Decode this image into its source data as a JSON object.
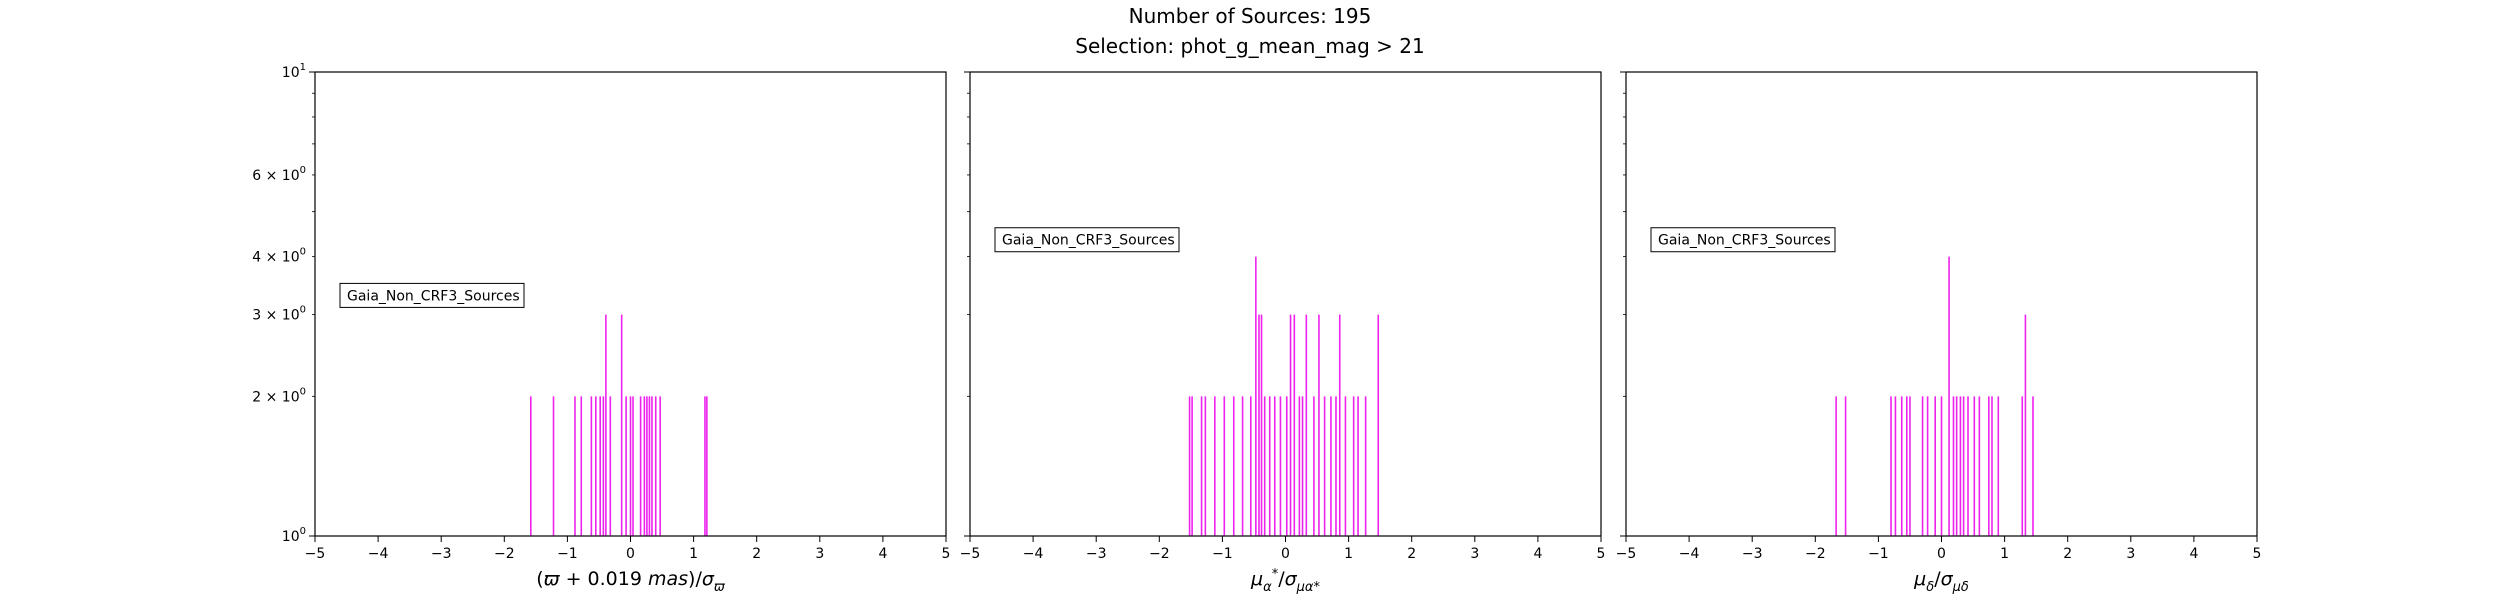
{
  "figure": {
    "title_lines": [
      "Number of Sources: 195",
      "Selection: phot_g_mean_mag > 21"
    ]
  },
  "colors": {
    "histogram": "#ee22ee",
    "axes": "#000000",
    "background": "#ffffff"
  },
  "chart_data": [
    {
      "type": "histogram",
      "yscale": "log",
      "xlim": [
        -5,
        5
      ],
      "ylim": [
        1,
        10
      ],
      "xticks": [
        -5,
        -4,
        -3,
        -2,
        -1,
        0,
        1,
        2,
        3,
        4,
        5
      ],
      "xticklabels": [
        "−5",
        "−4",
        "−3",
        "−2",
        "−1",
        "0",
        "1",
        "2",
        "3",
        "4",
        "5"
      ],
      "yticks": [
        {
          "value": 1,
          "base": "10",
          "exp": "0"
        },
        {
          "value": 2,
          "coef": "2",
          "base": "10",
          "exp": "0"
        },
        {
          "value": 3,
          "coef": "3",
          "base": "10",
          "exp": "0"
        },
        {
          "value": 4,
          "coef": "4",
          "base": "10",
          "exp": "0"
        },
        {
          "value": 6,
          "coef": "6",
          "base": "10",
          "exp": "0"
        },
        {
          "value": 10,
          "base": "10",
          "exp": "1"
        }
      ],
      "xlabel": "(ϖ + 0.019 mas)/σϖ",
      "xlabel_parts": [
        {
          "text": "("
        },
        {
          "text": "ϖ",
          "italic": true
        },
        {
          "text": " + 0.019 "
        },
        {
          "text": "mas",
          "italic": true
        },
        {
          "text": ")/"
        },
        {
          "text": "σ",
          "italic": true
        },
        {
          "text": "ϖ",
          "italic": true,
          "sub": true
        }
      ],
      "legend": "Gaia_Non_CRF3_Sources",
      "legend_position": "center-left",
      "spikes": [
        {
          "x": -1.58,
          "count": 2
        },
        {
          "x": -1.22,
          "count": 2
        },
        {
          "x": -0.88,
          "count": 2
        },
        {
          "x": -0.78,
          "count": 2
        },
        {
          "x": -0.62,
          "count": 2
        },
        {
          "x": -0.55,
          "count": 2
        },
        {
          "x": -0.48,
          "count": 2
        },
        {
          "x": -0.43,
          "count": 2
        },
        {
          "x": -0.39,
          "count": 3
        },
        {
          "x": -0.32,
          "count": 2
        },
        {
          "x": -0.14,
          "count": 3
        },
        {
          "x": -0.07,
          "count": 2
        },
        {
          "x": 0.0,
          "count": 2
        },
        {
          "x": 0.04,
          "count": 2
        },
        {
          "x": 0.16,
          "count": 2
        },
        {
          "x": 0.22,
          "count": 2
        },
        {
          "x": 0.26,
          "count": 2
        },
        {
          "x": 0.3,
          "count": 2
        },
        {
          "x": 0.34,
          "count": 2
        },
        {
          "x": 0.4,
          "count": 2
        },
        {
          "x": 0.47,
          "count": 2
        },
        {
          "x": 1.18,
          "count": 2
        },
        {
          "x": 1.21,
          "count": 2
        }
      ]
    },
    {
      "type": "histogram",
      "yscale": "log",
      "xlim": [
        -5,
        5
      ],
      "ylim": [
        1,
        10
      ],
      "xticks": [
        -5,
        -4,
        -3,
        -2,
        -1,
        0,
        1,
        2,
        3,
        4,
        5
      ],
      "xticklabels": [
        "−5",
        "−4",
        "−3",
        "−2",
        "−1",
        "0",
        "1",
        "2",
        "3",
        "4",
        "5"
      ],
      "xlabel": "μα*/σμα*",
      "xlabel_parts": [
        {
          "text": "μ",
          "italic": true
        },
        {
          "text": "α",
          "italic": true,
          "sub": true
        },
        {
          "text": "*",
          "sup": true
        },
        {
          "text": "/"
        },
        {
          "text": "σ",
          "italic": true
        },
        {
          "text": "μα*",
          "italic": true,
          "sub": true
        }
      ],
      "legend": "Gaia_Non_CRF3_Sources",
      "legend_position": "upper-left",
      "spikes": [
        {
          "x": -1.52,
          "count": 2
        },
        {
          "x": -1.48,
          "count": 2
        },
        {
          "x": -1.33,
          "count": 2
        },
        {
          "x": -1.27,
          "count": 2
        },
        {
          "x": -1.12,
          "count": 2
        },
        {
          "x": -0.97,
          "count": 2
        },
        {
          "x": -0.82,
          "count": 2
        },
        {
          "x": -0.68,
          "count": 2
        },
        {
          "x": -0.55,
          "count": 2
        },
        {
          "x": -0.47,
          "count": 4
        },
        {
          "x": -0.42,
          "count": 3
        },
        {
          "x": -0.38,
          "count": 3
        },
        {
          "x": -0.33,
          "count": 2
        },
        {
          "x": -0.25,
          "count": 2
        },
        {
          "x": -0.17,
          "count": 2
        },
        {
          "x": -0.08,
          "count": 2
        },
        {
          "x": 0.02,
          "count": 2
        },
        {
          "x": 0.08,
          "count": 3
        },
        {
          "x": 0.14,
          "count": 3
        },
        {
          "x": 0.22,
          "count": 2
        },
        {
          "x": 0.27,
          "count": 2
        },
        {
          "x": 0.33,
          "count": 3
        },
        {
          "x": 0.45,
          "count": 2
        },
        {
          "x": 0.53,
          "count": 3
        },
        {
          "x": 0.62,
          "count": 2
        },
        {
          "x": 0.72,
          "count": 2
        },
        {
          "x": 0.8,
          "count": 2
        },
        {
          "x": 0.86,
          "count": 3
        },
        {
          "x": 0.95,
          "count": 2
        },
        {
          "x": 1.08,
          "count": 2
        },
        {
          "x": 1.15,
          "count": 2
        },
        {
          "x": 1.27,
          "count": 2
        },
        {
          "x": 1.47,
          "count": 3
        }
      ]
    },
    {
      "type": "histogram",
      "yscale": "log",
      "xlim": [
        -5,
        5
      ],
      "ylim": [
        1,
        10
      ],
      "xticks": [
        -5,
        -4,
        -3,
        -2,
        -1,
        0,
        1,
        2,
        3,
        4,
        5
      ],
      "xticklabels": [
        "−5",
        "−4",
        "−3",
        "−2",
        "−1",
        "0",
        "1",
        "2",
        "3",
        "4",
        "5"
      ],
      "xlabel": "μδ/σμδ",
      "xlabel_parts": [
        {
          "text": "μ",
          "italic": true
        },
        {
          "text": "δ",
          "italic": true,
          "sub": true
        },
        {
          "text": "/"
        },
        {
          "text": "σ",
          "italic": true
        },
        {
          "text": "μδ",
          "italic": true,
          "sub": true
        }
      ],
      "legend": "Gaia_Non_CRF3_Sources",
      "legend_position": "upper-left",
      "spikes": [
        {
          "x": -1.67,
          "count": 2
        },
        {
          "x": -1.52,
          "count": 2
        },
        {
          "x": -0.8,
          "count": 2
        },
        {
          "x": -0.73,
          "count": 2
        },
        {
          "x": -0.63,
          "count": 2
        },
        {
          "x": -0.55,
          "count": 2
        },
        {
          "x": -0.5,
          "count": 2
        },
        {
          "x": -0.3,
          "count": 2
        },
        {
          "x": -0.22,
          "count": 2
        },
        {
          "x": -0.1,
          "count": 2
        },
        {
          "x": 0.0,
          "count": 2
        },
        {
          "x": 0.12,
          "count": 4
        },
        {
          "x": 0.19,
          "count": 2
        },
        {
          "x": 0.24,
          "count": 2
        },
        {
          "x": 0.3,
          "count": 2
        },
        {
          "x": 0.35,
          "count": 2
        },
        {
          "x": 0.42,
          "count": 2
        },
        {
          "x": 0.52,
          "count": 2
        },
        {
          "x": 0.6,
          "count": 2
        },
        {
          "x": 0.75,
          "count": 2
        },
        {
          "x": 0.8,
          "count": 2
        },
        {
          "x": 0.9,
          "count": 2
        },
        {
          "x": 1.28,
          "count": 2
        },
        {
          "x": 1.33,
          "count": 3
        },
        {
          "x": 1.45,
          "count": 2
        }
      ]
    }
  ]
}
